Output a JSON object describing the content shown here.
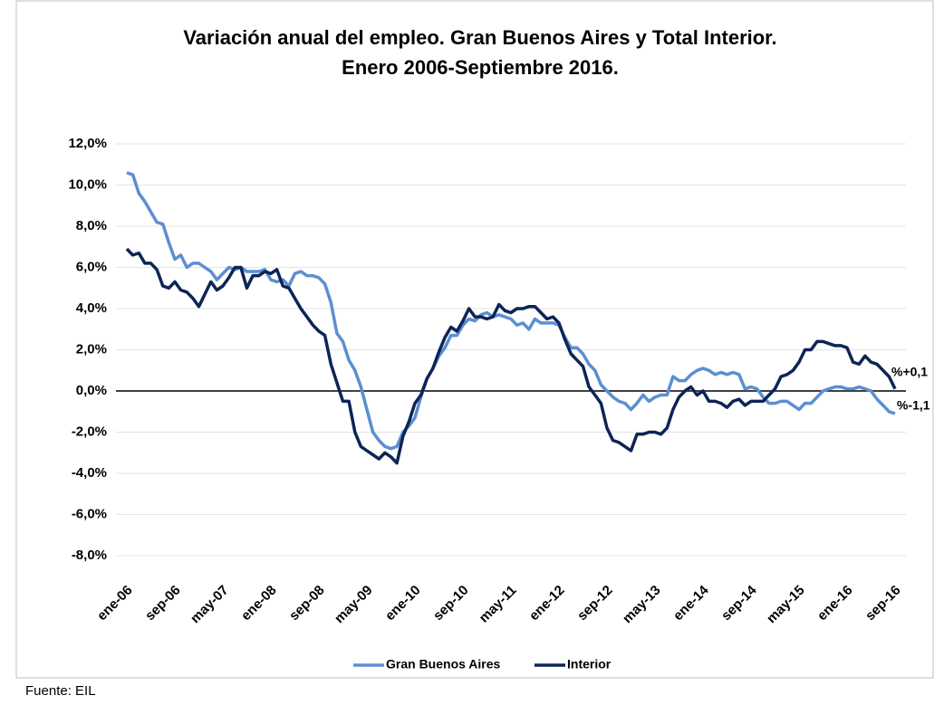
{
  "chart_data": {
    "type": "line",
    "title": [
      "Variación anual del empleo. Gran Buenos Aires y Total Interior.",
      "Enero 2006-Septiembre 2016."
    ],
    "source": "Fuente: EIL",
    "annotations": [
      "%+0,1",
      "%-1,1"
    ],
    "categories": [
      "ene-06",
      null,
      null,
      null,
      null,
      null,
      null,
      null,
      "sep-06",
      null,
      null,
      null,
      null,
      null,
      null,
      null,
      "may-07",
      null,
      null,
      null,
      null,
      null,
      null,
      null,
      "ene-08",
      null,
      null,
      null,
      null,
      null,
      null,
      null,
      "sep-08",
      null,
      null,
      null,
      null,
      null,
      null,
      null,
      "may-09",
      null,
      null,
      null,
      null,
      null,
      null,
      null,
      "ene-10",
      null,
      null,
      null,
      null,
      null,
      null,
      null,
      "sep-10",
      null,
      null,
      null,
      null,
      null,
      null,
      null,
      "may-11",
      null,
      null,
      null,
      null,
      null,
      null,
      null,
      "ene-12",
      null,
      null,
      null,
      null,
      null,
      null,
      null,
      "sep-12",
      null,
      null,
      null,
      null,
      null,
      null,
      null,
      "may-13",
      null,
      null,
      null,
      null,
      null,
      null,
      null,
      "ene-14",
      null,
      null,
      null,
      null,
      null,
      null,
      null,
      "sep-14",
      null,
      null,
      null,
      null,
      null,
      null,
      null,
      "may-15",
      null,
      null,
      null,
      null,
      null,
      null,
      null,
      "ene-16",
      null,
      null,
      null,
      null,
      null,
      null,
      null,
      "sep-16"
    ],
    "series": [
      {
        "name": "Gran Buenos Aires",
        "color": "#5b8fd0",
        "values": [
          10.6,
          10.5,
          9.6,
          9.2,
          8.7,
          8.2,
          8.1,
          7.2,
          6.4,
          6.6,
          6.0,
          6.2,
          6.2,
          6.0,
          5.8,
          5.4,
          5.7,
          6.0,
          5.9,
          6.0,
          5.8,
          5.8,
          5.8,
          5.9,
          5.4,
          5.3,
          5.4,
          5.1,
          5.7,
          5.8,
          5.6,
          5.6,
          5.5,
          5.2,
          4.3,
          2.8,
          2.4,
          1.5,
          1.0,
          0.2,
          -0.9,
          -2.0,
          -2.4,
          -2.7,
          -2.8,
          -2.7,
          -2.0,
          -1.7,
          -1.3,
          -0.3,
          0.6,
          1.1,
          1.7,
          2.1,
          2.7,
          2.7,
          3.2,
          3.5,
          3.4,
          3.7,
          3.8,
          3.6,
          3.7,
          3.6,
          3.5,
          3.2,
          3.3,
          3.0,
          3.5,
          3.3,
          3.3,
          3.3,
          3.2,
          2.6,
          2.1,
          2.1,
          1.8,
          1.3,
          1.0,
          0.3,
          0.0,
          -0.3,
          -0.5,
          -0.6,
          -0.9,
          -0.6,
          -0.2,
          -0.5,
          -0.3,
          -0.2,
          -0.2,
          0.7,
          0.5,
          0.5,
          0.8,
          1.0,
          1.1,
          1.0,
          0.8,
          0.9,
          0.8,
          0.9,
          0.8,
          0.1,
          0.2,
          0.1,
          -0.3,
          -0.6,
          -0.6,
          -0.5,
          -0.5,
          -0.7,
          -0.9,
          -0.6,
          -0.6,
          -0.3,
          0.0,
          0.1,
          0.2,
          0.2,
          0.1,
          0.1,
          0.2,
          0.1,
          0.0,
          -0.4,
          -0.7,
          -1.0,
          -1.1
        ]
      },
      {
        "name": "Interior",
        "color": "#0d2456",
        "values": [
          6.9,
          6.6,
          6.7,
          6.2,
          6.2,
          5.9,
          5.1,
          5.0,
          5.3,
          4.9,
          4.8,
          4.5,
          4.1,
          4.7,
          5.3,
          4.9,
          5.1,
          5.5,
          6.0,
          6.0,
          5.0,
          5.6,
          5.6,
          5.8,
          5.7,
          5.9,
          5.1,
          5.0,
          4.5,
          4.0,
          3.6,
          3.2,
          2.9,
          2.7,
          1.3,
          0.4,
          -0.5,
          -0.5,
          -2.0,
          -2.7,
          -2.9,
          -3.1,
          -3.3,
          -3.0,
          -3.2,
          -3.5,
          -2.2,
          -1.5,
          -0.6,
          -0.2,
          0.6,
          1.1,
          1.9,
          2.6,
          3.1,
          2.9,
          3.4,
          4.0,
          3.6,
          3.6,
          3.5,
          3.6,
          4.2,
          3.9,
          3.8,
          4.0,
          4.0,
          4.1,
          4.1,
          3.8,
          3.5,
          3.6,
          3.3,
          2.5,
          1.8,
          1.5,
          1.2,
          0.2,
          -0.2,
          -0.6,
          -1.8,
          -2.4,
          -2.5,
          -2.7,
          -2.9,
          -2.1,
          -2.1,
          -2.0,
          -2.0,
          -2.1,
          -1.8,
          -0.9,
          -0.3,
          0.0,
          0.2,
          -0.2,
          0.0,
          -0.5,
          -0.5,
          -0.6,
          -0.8,
          -0.5,
          -0.4,
          -0.7,
          -0.5,
          -0.5,
          -0.5,
          -0.2,
          0.1,
          0.7,
          0.8,
          1.0,
          1.4,
          2.0,
          2.0,
          2.4,
          2.4,
          2.3,
          2.2,
          2.2,
          2.1,
          1.4,
          1.3,
          1.7,
          1.4,
          1.3,
          1.0,
          0.7,
          0.1
        ]
      }
    ],
    "ylim": [
      -8,
      12
    ],
    "yticks": [
      {
        "value": -8,
        "label": "-8,0%"
      },
      {
        "value": -6,
        "label": "-6,0%"
      },
      {
        "value": -4,
        "label": "-4,0%"
      },
      {
        "value": -2,
        "label": "-2,0%"
      },
      {
        "value": 0,
        "label": "0,0%"
      },
      {
        "value": 2,
        "label": "2,0%"
      },
      {
        "value": 4,
        "label": "4,0%"
      },
      {
        "value": 6,
        "label": "6,0%"
      },
      {
        "value": 8,
        "label": "8,0%"
      },
      {
        "value": 10,
        "label": "10,0%"
      },
      {
        "value": 12,
        "label": "12,0%"
      }
    ],
    "grid": true
  }
}
